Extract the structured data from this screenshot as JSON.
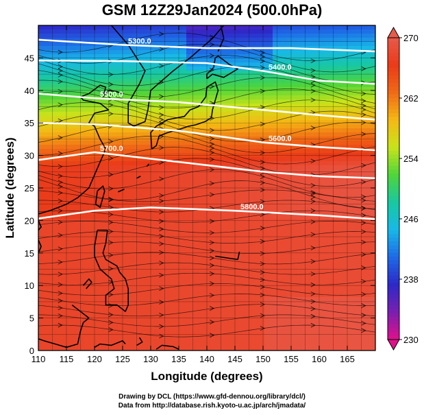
{
  "title": "GSM 12Z29Jan2024 (500.0hPa)",
  "x_axis": {
    "label": "Longitude (degrees)",
    "range": [
      110,
      170
    ],
    "ticks": [
      110,
      115,
      120,
      125,
      130,
      135,
      140,
      145,
      150,
      155,
      160,
      165
    ]
  },
  "y_axis": {
    "label": "Latitude  (degrees)",
    "range": [
      0,
      50
    ],
    "ticks": [
      0,
      5,
      10,
      15,
      20,
      25,
      30,
      35,
      40,
      45
    ]
  },
  "colorbar": {
    "range": [
      230,
      270
    ],
    "tick_labels": [
      "270",
      "262",
      "254",
      "246",
      "238",
      "230"
    ],
    "colors": [
      "#e0108c",
      "#7a1fb0",
      "#2d28c8",
      "#1e6ae6",
      "#18b8e8",
      "#18c8a0",
      "#4fd53a",
      "#c8e31a",
      "#f5b814",
      "#f06a16",
      "#ea3a18",
      "#e85a4a"
    ]
  },
  "contours": [
    {
      "label": "5300.0",
      "lat_at_lon": [
        [
          110,
          47.8
        ],
        [
          125,
          47.0
        ],
        [
          140,
          46.5
        ],
        [
          155,
          46.5
        ],
        [
          170,
          46.0
        ]
      ]
    },
    {
      "label": "5400.0",
      "lat_at_lon": [
        [
          110,
          44.6
        ],
        [
          125,
          44.5
        ],
        [
          140,
          44.2
        ],
        [
          150,
          43.0
        ],
        [
          160,
          41.5
        ],
        [
          170,
          41.0
        ]
      ]
    },
    {
      "label": "5500.0",
      "lat_at_lon": [
        [
          110,
          39.5
        ],
        [
          120,
          38.8
        ],
        [
          135,
          38.2
        ],
        [
          150,
          37.0
        ],
        [
          160,
          36.2
        ],
        [
          170,
          35.5
        ]
      ]
    },
    {
      "label": "5600.0",
      "lat_at_lon": [
        [
          110,
          35.0
        ],
        [
          120,
          34.8
        ],
        [
          135,
          33.8
        ],
        [
          150,
          32.0
        ],
        [
          160,
          31.3
        ],
        [
          170,
          30.8
        ]
      ]
    },
    {
      "label": "5700.0",
      "lat_at_lon": [
        [
          110,
          29.3
        ],
        [
          120,
          30.5
        ],
        [
          135,
          29.0
        ],
        [
          150,
          27.5
        ],
        [
          160,
          26.8
        ],
        [
          170,
          26.5
        ]
      ]
    },
    {
      "label": "5800.0",
      "lat_at_lon": [
        [
          110,
          20.3
        ],
        [
          120,
          21.5
        ],
        [
          130,
          22.0
        ],
        [
          145,
          21.5
        ],
        [
          160,
          20.8
        ],
        [
          170,
          20.2
        ]
      ]
    }
  ],
  "credits": [
    "Drawing by DCL (https://www.gfd-dennou.org/library/dcl/)",
    "Data from http://database.rish.kyoto-u.ac.jp/arch/jmadata/"
  ]
}
